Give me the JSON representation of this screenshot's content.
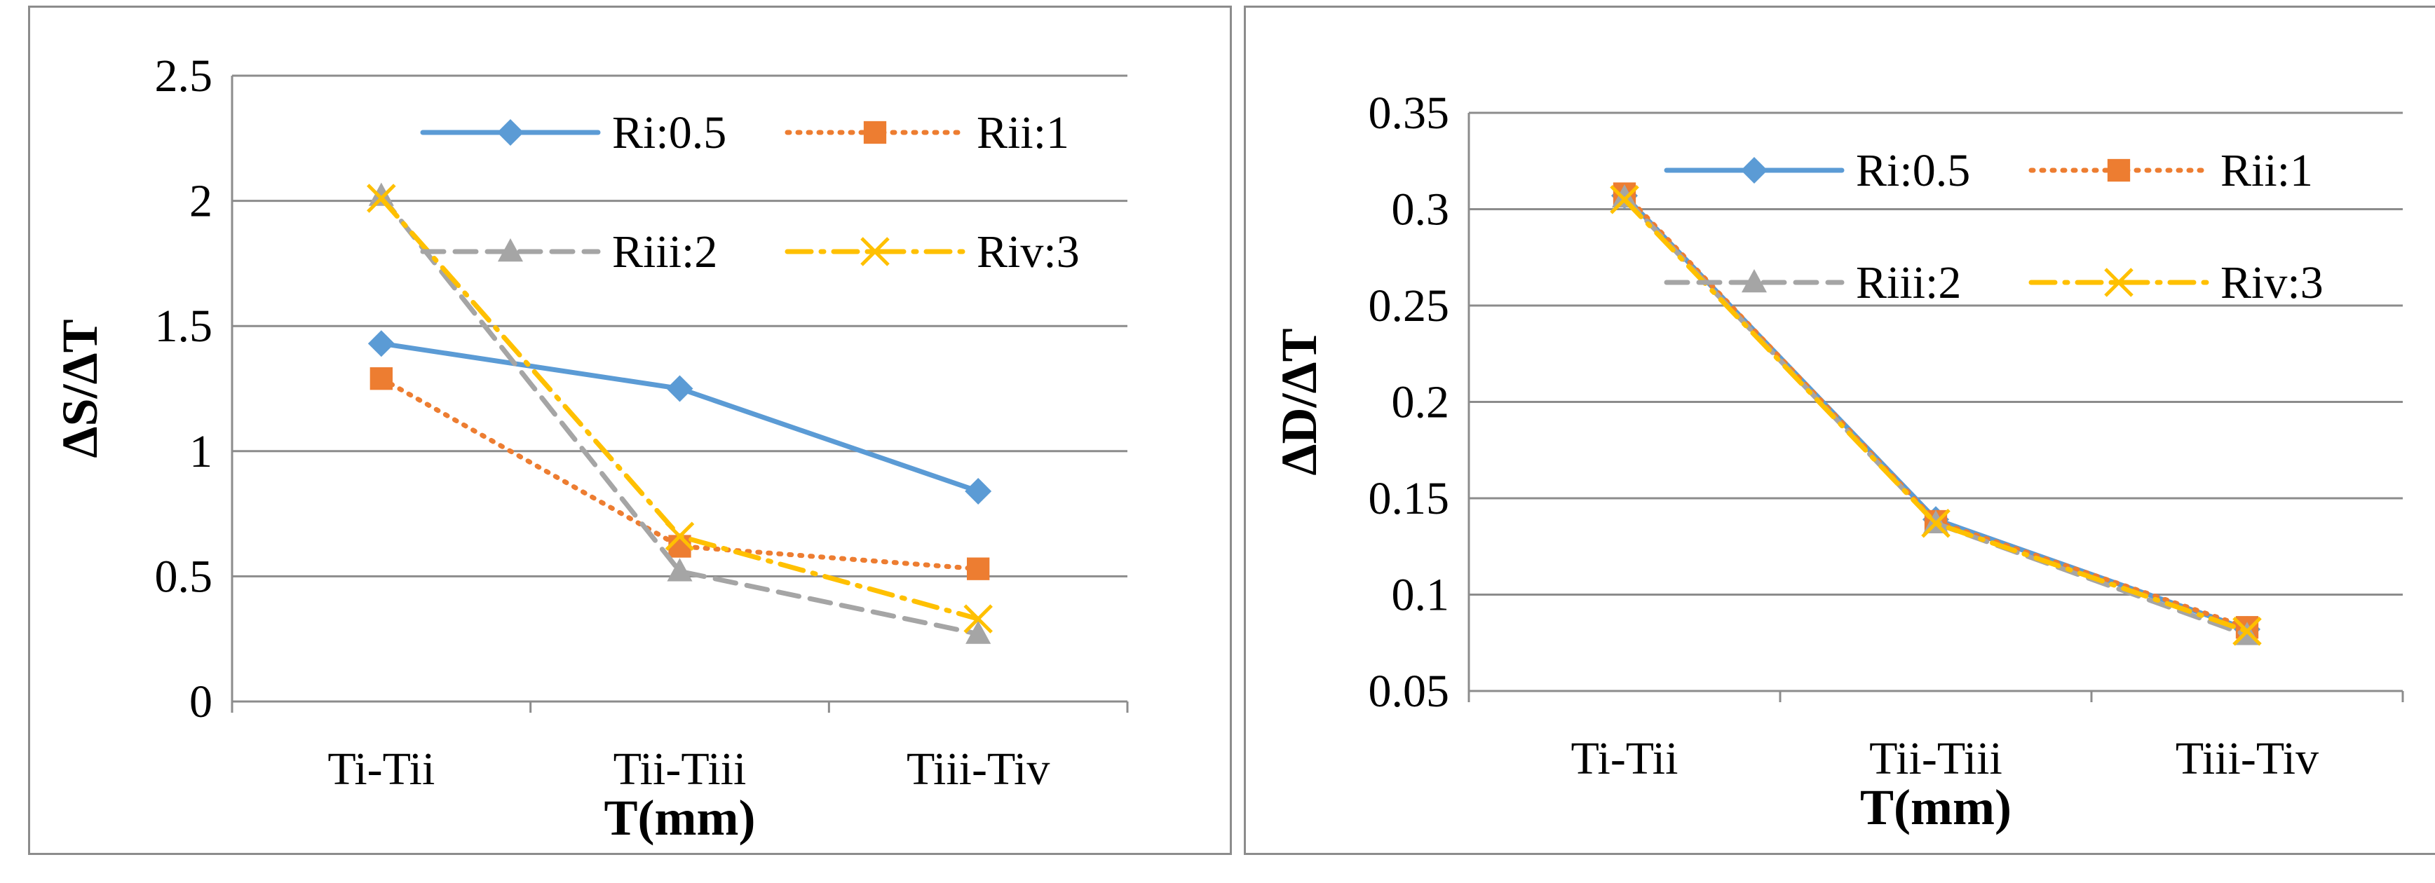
{
  "chart_data": [
    {
      "type": "line",
      "title": "",
      "xlabel": "T(mm)",
      "ylabel": "ΔS/ΔT",
      "categories": [
        "Ti-Tii",
        "Tii-Tiii",
        "Tiii-Tiv"
      ],
      "ylim": [
        0,
        2.5
      ],
      "yticks": [
        "0",
        "0.5",
        "1",
        "1.5",
        "2",
        "2.5"
      ],
      "grid": true,
      "legend_position": "top-right",
      "series": [
        {
          "name": "Ri:0.5",
          "values": [
            1.43,
            1.25,
            0.84
          ],
          "color": "#5b9bd5",
          "marker": "diamond",
          "dash": "solid"
        },
        {
          "name": "Rii:1",
          "values": [
            1.29,
            0.62,
            0.53
          ],
          "color": "#ed7d31",
          "marker": "square",
          "dash": "dot"
        },
        {
          "name": "Riii:2",
          "values": [
            2.02,
            0.52,
            0.27
          ],
          "color": "#a5a5a5",
          "marker": "triangle",
          "dash": "dash"
        },
        {
          "name": "Riv:3",
          "values": [
            2.01,
            0.66,
            0.33
          ],
          "color": "#ffc000",
          "marker": "x",
          "dash": "dashdot"
        }
      ]
    },
    {
      "type": "line",
      "title": "",
      "xlabel": "T(mm)",
      "ylabel": "ΔD/ΔT",
      "categories": [
        "Ti-Tii",
        "Tii-Tiii",
        "Tiii-Tiv"
      ],
      "ylim": [
        0.05,
        0.35
      ],
      "yticks": [
        "0.05",
        "0.1",
        "0.15",
        "0.2",
        "0.25",
        "0.3",
        "0.35"
      ],
      "grid": true,
      "legend_position": "top-right",
      "series": [
        {
          "name": "Ri:0.5",
          "values": [
            0.307,
            0.139,
            0.082
          ],
          "color": "#5b9bd5",
          "marker": "diamond",
          "dash": "solid"
        },
        {
          "name": "Rii:1",
          "values": [
            0.308,
            0.138,
            0.083
          ],
          "color": "#ed7d31",
          "marker": "square",
          "dash": "dot"
        },
        {
          "name": "Riii:2",
          "values": [
            0.306,
            0.137,
            0.079
          ],
          "color": "#a5a5a5",
          "marker": "triangle",
          "dash": "dash"
        },
        {
          "name": "Riv:3",
          "values": [
            0.305,
            0.137,
            0.081
          ],
          "color": "#ffc000",
          "marker": "x",
          "dash": "dashdot"
        }
      ]
    }
  ]
}
